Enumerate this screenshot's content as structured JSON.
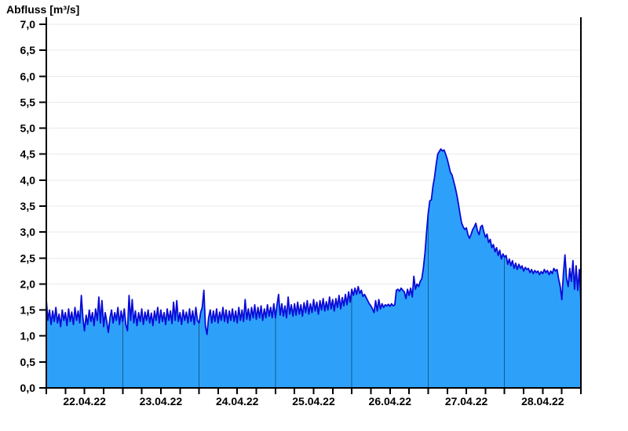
{
  "chart_data": {
    "type": "area",
    "title": "Abfluss [m³/s]",
    "ylabel": "Abfluss [m³/s]",
    "xlabel": "",
    "legend": "none",
    "background": "#ffffff",
    "grid": {
      "horizontal_gridlines": true,
      "vertical_gridlines": "day separators, visible only inside filled area"
    },
    "axes": {
      "y": {
        "min": 0,
        "max": 7,
        "tick_step": 0.5,
        "unit": "m³/s",
        "tick_labels": [
          "0,0",
          "0,5",
          "1,0",
          "1,5",
          "2,0",
          "2,5",
          "3,0",
          "3,5",
          "4,0",
          "4,5",
          "5,0",
          "5,5",
          "6,0",
          "6,5",
          "7,0"
        ]
      },
      "x": {
        "start": "22.04.22 00:00",
        "end": "29.04.22 00:00",
        "total_hours": 168,
        "minor_tick_hours": 6,
        "day_boundary_hours": [
          24,
          48,
          72,
          96,
          120,
          144
        ],
        "day_labels": [
          "22.04.22",
          "23.04.22",
          "24.04.22",
          "25.04.22",
          "26.04.22",
          "27.04.22",
          "28.04.22"
        ]
      }
    },
    "series": [
      {
        "name": "Abfluss",
        "unit": "m³/s",
        "start_hour": 0,
        "sample_interval_hours": 0.5,
        "peak_value": 4.6,
        "peak_time": "27.04.22 ~04:00",
        "values": [
          1.7,
          1.3,
          1.5,
          1.22,
          1.48,
          1.28,
          1.55,
          1.25,
          1.42,
          1.18,
          1.5,
          1.3,
          1.45,
          1.2,
          1.52,
          1.28,
          1.46,
          1.22,
          1.55,
          1.3,
          1.48,
          1.25,
          1.78,
          1.35,
          1.1,
          1.4,
          1.22,
          1.5,
          1.28,
          1.45,
          1.2,
          1.52,
          1.3,
          1.75,
          1.25,
          1.68,
          1.18,
          1.45,
          1.28,
          1.07,
          1.35,
          1.5,
          1.25,
          1.45,
          1.3,
          1.55,
          1.22,
          1.48,
          1.28,
          1.52,
          1.22,
          1.1,
          1.78,
          1.3,
          1.7,
          1.25,
          1.48,
          1.2,
          1.45,
          1.28,
          1.52,
          1.22,
          1.46,
          1.3,
          1.5,
          1.25,
          1.44,
          1.2,
          1.48,
          1.3,
          1.55,
          1.25,
          1.5,
          1.28,
          1.45,
          1.22,
          1.52,
          1.3,
          1.48,
          1.24,
          1.65,
          1.3,
          1.68,
          1.28,
          1.45,
          1.22,
          1.5,
          1.3,
          1.46,
          1.25,
          1.52,
          1.28,
          1.48,
          1.22,
          1.55,
          1.3,
          1.25,
          1.45,
          1.55,
          1.88,
          1.2,
          1.03,
          1.35,
          1.5,
          1.25,
          1.48,
          1.28,
          1.52,
          1.25,
          1.46,
          1.3,
          1.55,
          1.28,
          1.5,
          1.25,
          1.48,
          1.3,
          1.52,
          1.28,
          1.48,
          1.25,
          1.55,
          1.3,
          1.5,
          1.28,
          1.7,
          1.32,
          1.52,
          1.3,
          1.55,
          1.35,
          1.6,
          1.32,
          1.55,
          1.35,
          1.58,
          1.3,
          1.52,
          1.35,
          1.6,
          1.38,
          1.55,
          1.35,
          1.62,
          1.35,
          1.6,
          1.8,
          1.4,
          1.62,
          1.38,
          1.58,
          1.35,
          1.75,
          1.42,
          1.6,
          1.38,
          1.62,
          1.4,
          1.65,
          1.42,
          1.6,
          1.38,
          1.64,
          1.45,
          1.68,
          1.42,
          1.62,
          1.45,
          1.7,
          1.48,
          1.65,
          1.42,
          1.68,
          1.5,
          1.72,
          1.48,
          1.66,
          1.5,
          1.75,
          1.52,
          1.7,
          1.48,
          1.72,
          1.55,
          1.78,
          1.52,
          1.74,
          1.58,
          1.8,
          1.6,
          1.85,
          1.65,
          1.9,
          1.78,
          1.92,
          1.8,
          1.95,
          1.82,
          1.88,
          1.76,
          1.8,
          1.74,
          1.68,
          1.62,
          1.58,
          1.52,
          1.45,
          1.68,
          1.48,
          1.7,
          1.52,
          1.62,
          1.55,
          1.6,
          1.58,
          1.61,
          1.57,
          1.62,
          1.58,
          1.6,
          1.88,
          1.9,
          1.86,
          1.92,
          1.88,
          1.85,
          1.72,
          1.9,
          1.78,
          1.92,
          1.75,
          2.15,
          1.9,
          2.0,
          1.95,
          2.05,
          2.1,
          2.3,
          2.6,
          3.0,
          3.35,
          3.6,
          3.62,
          3.88,
          4.05,
          4.3,
          4.5,
          4.55,
          4.6,
          4.56,
          4.58,
          4.5,
          4.4,
          4.28,
          4.15,
          4.1,
          3.98,
          3.86,
          3.72,
          3.55,
          3.35,
          3.18,
          3.1,
          3.05,
          3.08,
          2.95,
          2.88,
          2.96,
          3.05,
          3.1,
          3.17,
          3.02,
          2.95,
          3.1,
          3.13,
          3.0,
          2.9,
          2.96,
          2.8,
          2.86,
          2.7,
          2.76,
          2.62,
          2.7,
          2.55,
          2.65,
          2.48,
          2.58,
          2.52,
          2.55,
          2.38,
          2.48,
          2.35,
          2.45,
          2.3,
          2.4,
          2.28,
          2.38,
          2.3,
          2.35,
          2.25,
          2.32,
          2.28,
          2.3,
          2.22,
          2.28,
          2.2,
          2.26,
          2.22,
          2.25,
          2.18,
          2.24,
          2.2,
          2.28,
          2.22,
          2.26,
          2.18,
          2.25,
          2.2,
          2.3,
          2.25,
          2.28,
          2.1,
          1.95,
          1.7,
          2.2,
          2.56,
          2.1,
          1.95,
          2.3,
          2.05,
          2.45,
          1.9,
          2.35,
          1.88,
          2.28,
          1.65
        ]
      }
    ],
    "colors": {
      "area_fill": "#2da1fa",
      "line": "#0a0ad8",
      "gridline": "#e9e9e9",
      "axis": "#000000",
      "day_separator": "#19598a",
      "text": "#000000",
      "background": "#ffffff"
    }
  }
}
